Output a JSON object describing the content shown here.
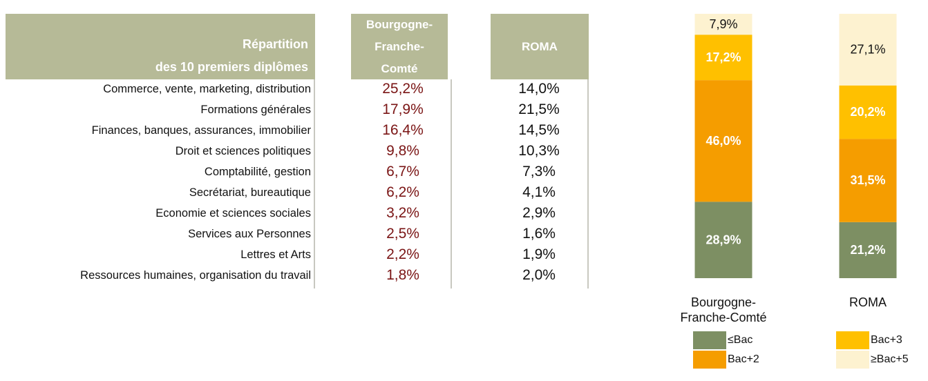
{
  "table": {
    "row_header": [
      "Répartition",
      "des 10 premiers diplômes"
    ],
    "columns": [
      "Bourgogne-Franche-Comté",
      "ROMA"
    ],
    "rows": [
      [
        "Commerce, vente, marketing, distribution",
        "25,2%",
        "14,0%"
      ],
      [
        "Formations générales",
        "17,9%",
        "21,5%"
      ],
      [
        "Finances, banques, assurances, immobilier",
        "16,4%",
        "14,5%"
      ],
      [
        "Droit et sciences politiques",
        "9,8%",
        "10,3%"
      ],
      [
        "Comptabilité, gestion",
        "6,7%",
        "7,3%"
      ],
      [
        "Secrétariat, bureautique",
        "6,2%",
        "4,1%"
      ],
      [
        "Economie et sciences sociales",
        "3,2%",
        "2,9%"
      ],
      [
        "Services aux Personnes",
        "2,5%",
        "1,6%"
      ],
      [
        "Lettres et Arts",
        "2,2%",
        "1,9%"
      ],
      [
        "Ressources humaines, organisation du travail",
        "1,8%",
        "2,0%"
      ]
    ]
  },
  "chart_data": {
    "type": "stacked_bar",
    "categories": [
      "Bourgogne-Franche-Comté",
      "ROMA"
    ],
    "series": [
      {
        "name": "≤Bac",
        "color": "#7d8f63",
        "values": [
          28.9,
          21.2
        ],
        "value_labels": [
          "28,9%",
          "21,2%"
        ]
      },
      {
        "name": "Bac+2",
        "color": "#f59d00",
        "values": [
          46.0,
          31.5
        ],
        "value_labels": [
          "46,0%",
          "31,5%"
        ]
      },
      {
        "name": "Bac+3",
        "color": "#ffc000",
        "values": [
          17.2,
          20.2
        ],
        "value_labels": [
          "17,2%",
          "20,2%"
        ]
      },
      {
        "name": "≥Bac+5",
        "color": "#fdf2d0",
        "values": [
          7.9,
          27.1
        ],
        "value_labels": [
          "7,9%",
          "27,1%"
        ]
      }
    ],
    "ylim": [
      0,
      100
    ]
  }
}
